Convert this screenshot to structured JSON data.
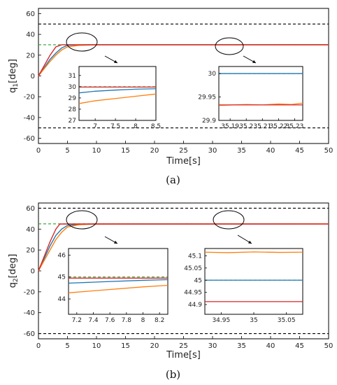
{
  "chart_data": [
    {
      "type": "line",
      "caption": "(a)",
      "xlabel": "Time[s]",
      "ylabel": "q1[deg]",
      "ylabel_main": "q",
      "ylabel_sub": "1",
      "ylabel_unit": "[deg]",
      "xlim": [
        0,
        50
      ],
      "ylim": [
        -65,
        65
      ],
      "xticks": [
        0,
        5,
        10,
        15,
        20,
        25,
        30,
        35,
        40,
        45,
        50
      ],
      "yticks": [
        -60,
        -40,
        -20,
        0,
        20,
        40,
        60
      ],
      "reference_lines": [
        {
          "y": 50,
          "style": "dashed",
          "color": "#000000"
        },
        {
          "y": -50,
          "style": "dashed",
          "color": "#000000"
        },
        {
          "y": 30,
          "style": "dashed",
          "color": "#2ca02c"
        }
      ],
      "series": [
        {
          "color": "#1f77b4",
          "x": [
            0,
            1,
            2,
            3,
            4,
            5,
            7,
            10,
            50
          ],
          "y": [
            0,
            8,
            16,
            22,
            27,
            29.5,
            29.95,
            30,
            30
          ]
        },
        {
          "color": "#ff7f0e",
          "x": [
            0,
            1,
            2,
            3,
            4,
            5,
            7,
            10,
            50
          ],
          "y": [
            0,
            7,
            14,
            20,
            25,
            28,
            29.4,
            29.9,
            29.97
          ]
        },
        {
          "color": "#d62728",
          "x": [
            0,
            1,
            2,
            3,
            4,
            5,
            7,
            10,
            50
          ],
          "y": [
            0,
            10,
            20,
            28,
            30,
            30,
            30,
            30,
            30
          ]
        }
      ],
      "insets": [
        {
          "xlim": [
            6.6,
            8.5
          ],
          "ylim": [
            27,
            31.8
          ],
          "xticks": [
            7,
            7.5,
            8,
            8.5
          ],
          "xticklabels": [
            "7",
            "7.5",
            "8",
            "8.5"
          ],
          "yticks": [
            27,
            28,
            29,
            30,
            31
          ],
          "yticklabels": [
            "27",
            "28",
            "29",
            "30",
            "31"
          ],
          "green_y": 30,
          "series": [
            {
              "color": "#1f77b4",
              "x": [
                6.6,
                7,
                7.5,
                8,
                8.5
              ],
              "y": [
                29.45,
                29.6,
                29.7,
                29.78,
                29.82
              ]
            },
            {
              "color": "#ff7f0e",
              "x": [
                6.6,
                7,
                7.5,
                8,
                8.5
              ],
              "y": [
                28.5,
                28.75,
                28.95,
                29.15,
                29.35
              ]
            },
            {
              "color": "#d62728",
              "x": [
                6.6,
                8.5
              ],
              "y": [
                29.97,
                29.97
              ]
            }
          ]
        },
        {
          "xlim": [
            35.183,
            35.235
          ],
          "ylim": [
            29.9,
            30.015
          ],
          "xticks": [
            35.19,
            35.2,
            35.21,
            35.22,
            35.23
          ],
          "xticklabels": [
            "35.19",
            "35.2",
            "35.21",
            "35.22",
            "35.23"
          ],
          "yticks": [
            29.9,
            29.95,
            30
          ],
          "yticklabels": [
            "29.9",
            "29.95",
            "30"
          ],
          "green_y": 30,
          "series": [
            {
              "color": "#1f77b4",
              "x": [
                35.183,
                35.235
              ],
              "y": [
                30.0,
                30.0
              ]
            },
            {
              "color": "#ff7f0e",
              "x": [
                35.183,
                35.2,
                35.21,
                35.22,
                35.228,
                35.235
              ],
              "y": [
                29.932,
                29.934,
                29.933,
                29.935,
                29.934,
                29.937
              ]
            },
            {
              "color": "#d62728",
              "x": [
                35.183,
                35.235
              ],
              "y": [
                29.933,
                29.933
              ]
            }
          ]
        }
      ]
    },
    {
      "type": "line",
      "caption": "(b)",
      "xlabel": "Time[s]",
      "ylabel": "q2[deg]",
      "ylabel_main": "q",
      "ylabel_sub": "2",
      "ylabel_unit": "[deg]",
      "xlim": [
        0,
        50
      ],
      "ylim": [
        -65,
        65
      ],
      "xticks": [
        0,
        5,
        10,
        15,
        20,
        25,
        30,
        35,
        40,
        45,
        50
      ],
      "yticks": [
        -60,
        -40,
        -20,
        0,
        20,
        40,
        60
      ],
      "reference_lines": [
        {
          "y": 60,
          "style": "dashed",
          "color": "#000000"
        },
        {
          "y": -60,
          "style": "dashed",
          "color": "#000000"
        },
        {
          "y": 45,
          "style": "dashed",
          "color": "#2ca02c"
        }
      ],
      "series": [
        {
          "color": "#1f77b4",
          "x": [
            0,
            1,
            2,
            3,
            4,
            5,
            7,
            10,
            50
          ],
          "y": [
            0,
            12,
            24,
            34,
            40,
            43.5,
            44.7,
            44.95,
            45
          ]
        },
        {
          "color": "#ff7f0e",
          "x": [
            0,
            1,
            2,
            3,
            4,
            5,
            7,
            10,
            50
          ],
          "y": [
            0,
            10,
            20,
            30,
            37,
            42,
            44.2,
            44.9,
            45.1
          ]
        },
        {
          "color": "#d62728",
          "x": [
            0,
            1,
            2,
            3,
            3.7,
            5,
            50
          ],
          "y": [
            0,
            14,
            28,
            40,
            44.9,
            44.9,
            44.9
          ]
        }
      ],
      "insets": [
        {
          "xlim": [
            7.1,
            8.3
          ],
          "ylim": [
            43.3,
            46.3
          ],
          "xticks": [
            7.2,
            7.4,
            7.6,
            7.8,
            8,
            8.2
          ],
          "xticklabels": [
            "7.2",
            "7.4",
            "7.6",
            "7.8",
            "8",
            "8.2"
          ],
          "yticks": [
            44,
            45,
            46
          ],
          "yticklabels": [
            "44",
            "45",
            "46"
          ],
          "green_y": 45,
          "series": [
            {
              "color": "#1f77b4",
              "x": [
                7.1,
                7.5,
                8,
                8.3
              ],
              "y": [
                44.72,
                44.78,
                44.85,
                44.88
              ]
            },
            {
              "color": "#ff7f0e",
              "x": [
                7.1,
                7.5,
                8,
                8.3
              ],
              "y": [
                44.28,
                44.4,
                44.55,
                44.62
              ]
            },
            {
              "color": "#d62728",
              "x": [
                7.1,
                8.3
              ],
              "y": [
                44.95,
                44.95
              ]
            }
          ]
        },
        {
          "xlim": [
            34.925,
            35.075
          ],
          "ylim": [
            44.86,
            45.13
          ],
          "xticks": [
            34.95,
            35,
            35.05
          ],
          "xticklabels": [
            "34.95",
            "35",
            "35.05"
          ],
          "yticks": [
            44.9,
            44.95,
            45,
            45.05,
            45.1
          ],
          "yticklabels": [
            "44.9",
            "44.95",
            "45",
            "45.05",
            "45.1"
          ],
          "green_y": 45,
          "series": [
            {
              "color": "#1f77b4",
              "x": [
                34.925,
                35.075
              ],
              "y": [
                45.0,
                45.0
              ]
            },
            {
              "color": "#ff7f0e",
              "x": [
                34.925,
                34.96,
                35.0,
                35.04,
                35.075
              ],
              "y": [
                45.115,
                45.113,
                45.116,
                45.114,
                45.115
              ]
            },
            {
              "color": "#d62728",
              "x": [
                34.925,
                35.075
              ],
              "y": [
                44.912,
                44.912
              ]
            }
          ]
        }
      ]
    }
  ]
}
